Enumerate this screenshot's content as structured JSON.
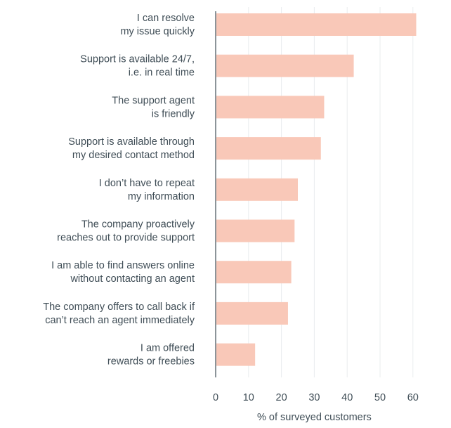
{
  "chart_data": {
    "type": "bar",
    "orientation": "horizontal",
    "categories": [
      [
        "I can resolve",
        "my issue quickly"
      ],
      [
        "Support is available 24/7,",
        "i.e. in real time"
      ],
      [
        "The support agent",
        "is friendly"
      ],
      [
        "Support is available through",
        "my desired contact method"
      ],
      [
        "I don’t have to repeat",
        "my information"
      ],
      [
        "The company proactively",
        "reaches out to provide support"
      ],
      [
        "I am able to find answers online",
        "without contacting an agent"
      ],
      [
        "The company offers to call back if",
        "can’t reach an agent immediately"
      ],
      [
        "I am offered",
        "rewards or freebies"
      ]
    ],
    "values": [
      61,
      42,
      33,
      32,
      25,
      24,
      23,
      22,
      12
    ],
    "xlabel": "% of surveyed customers",
    "ylabel": "",
    "title": "",
    "xlim": [
      0,
      60
    ],
    "xticks": [
      "0",
      "10",
      "20",
      "30",
      "40",
      "50",
      "60"
    ],
    "grid": true,
    "bar_color": "#f9c8b8",
    "grid_color": "#e9ecee",
    "axis_color": "#3f4d56",
    "text_color": "#3f4d56"
  }
}
